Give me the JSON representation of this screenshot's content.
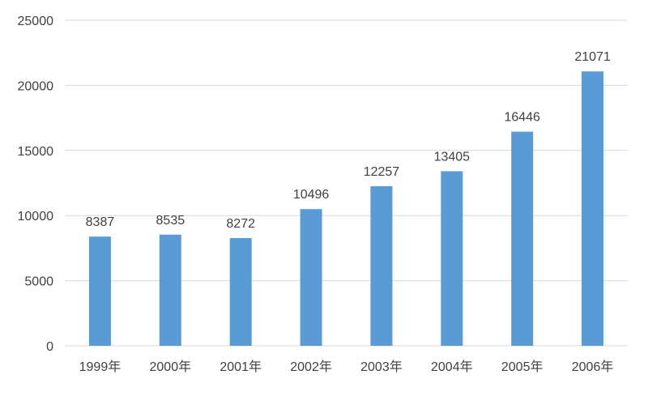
{
  "chart_data": {
    "type": "bar",
    "title": "",
    "xlabel": "",
    "ylabel": "",
    "categories": [
      "1999年",
      "2000年",
      "2001年",
      "2002年",
      "2003年",
      "2004年",
      "2005年",
      "2006年"
    ],
    "values": [
      8387,
      8535,
      8272,
      10496,
      12257,
      13405,
      16446,
      21071
    ],
    "data_labels": [
      "8387",
      "8535",
      "8272",
      "10496",
      "12257",
      "13405",
      "16446",
      "21071"
    ],
    "ylim": [
      0,
      25000
    ],
    "yticks": [
      0,
      5000,
      10000,
      15000,
      20000,
      25000
    ],
    "ytick_labels": [
      "0",
      "5000",
      "10000",
      "15000",
      "20000",
      "25000"
    ],
    "grid": true,
    "legend": "none",
    "bar_color": "#5b9bd5",
    "grid_color": "#d9d9d9"
  }
}
